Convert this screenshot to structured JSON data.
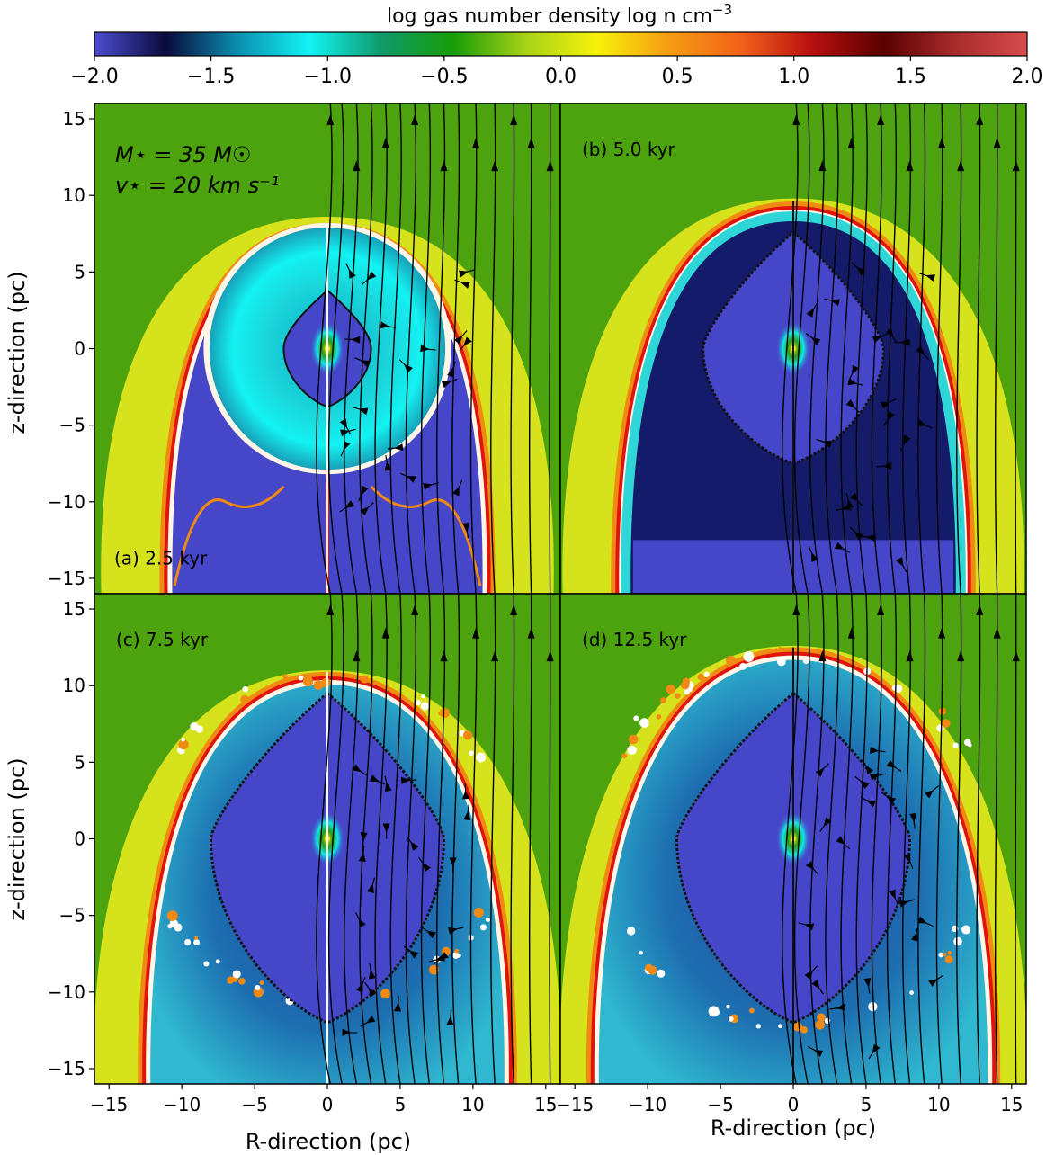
{
  "colorbar": {
    "label": "log gas number density log n cm",
    "label_exp": "−3",
    "range": [
      -2.0,
      2.0
    ],
    "ticks": [
      "−2.0",
      "−1.5",
      "−1.0",
      "−0.5",
      "0.0",
      "0.5",
      "1.0",
      "1.5",
      "2.0"
    ],
    "colors": [
      "#4c4ccf",
      "#0a0a3c",
      "#0a8fb0",
      "#12f4f4",
      "#0f9a6a",
      "#179c07",
      "#a6d216",
      "#f6f20a",
      "#f59d12",
      "#f3621a",
      "#b81010",
      "#5a0000",
      "#a82c2c",
      "#d84c4c"
    ]
  },
  "colors": {
    "ambient": "#4da30d",
    "shell_yellow": "#d6e21c",
    "shell_orange": "#f08a12",
    "shell_red": "#e0140c",
    "shell_white": "#fff6e8",
    "cavity_cyan": "#2fd6d8",
    "cavity_blue": "#4646c8",
    "cavity_dark": "#141c6a",
    "turbulent": "#1f7fb2"
  },
  "axes": {
    "xlabel": "R-direction (pc)",
    "ylabel": "z-direction (pc)",
    "xlim": [
      -16,
      16
    ],
    "ylim": [
      -16,
      16
    ],
    "x_ticks": [
      "−15",
      "−10",
      "−5",
      "0",
      "5",
      "10",
      "15"
    ],
    "y_ticks": [
      "15",
      "10",
      "5",
      "0",
      "−5",
      "−10",
      "−15"
    ]
  },
  "annotation": {
    "line1": "M⋆ = 35 M☉",
    "line2": "v⋆ = 20 km s⁻¹"
  },
  "panels": [
    {
      "id": "a",
      "label": "(a) 2.5 kyr",
      "shell_top": 8.2,
      "shell_halfwidth": 11.5,
      "outer_top": 8.6,
      "outer_halfwidth": 15.5
    },
    {
      "id": "b",
      "label": "(b) 5.0 kyr",
      "shell_top": 9.6,
      "shell_halfwidth": 12.5,
      "outer_top": 9.8,
      "outer_halfwidth": 15.8
    },
    {
      "id": "c",
      "label": "(c) 7.5 kyr",
      "shell_top": 10.9,
      "shell_halfwidth": 13.0,
      "outer_top": 11.0,
      "outer_halfwidth": 16.0
    },
    {
      "id": "d",
      "label": "(d) 12.5 kyr",
      "shell_top": 12.5,
      "shell_halfwidth": 14.2,
      "outer_top": 12.6,
      "outer_halfwidth": 16.0
    }
  ],
  "chart_data": {
    "type": "heatmap",
    "title": "",
    "colorbar_label": "log gas number density log n cm−3",
    "quantity_range": [
      -2.0,
      2.0
    ],
    "xlabel": "R-direction (pc)",
    "ylabel": "z-direction (pc)",
    "xlim": [
      -16,
      16
    ],
    "ylim": [
      -16,
      16
    ],
    "panels": [
      "(a) 2.5 kyr",
      "(b) 5.0 kyr",
      "(c) 7.5 kyr",
      "(d) 12.5 kyr"
    ],
    "parameters": {
      "stellar_mass_Msun": 35,
      "stellar_velocity_km_s": 20
    }
  }
}
